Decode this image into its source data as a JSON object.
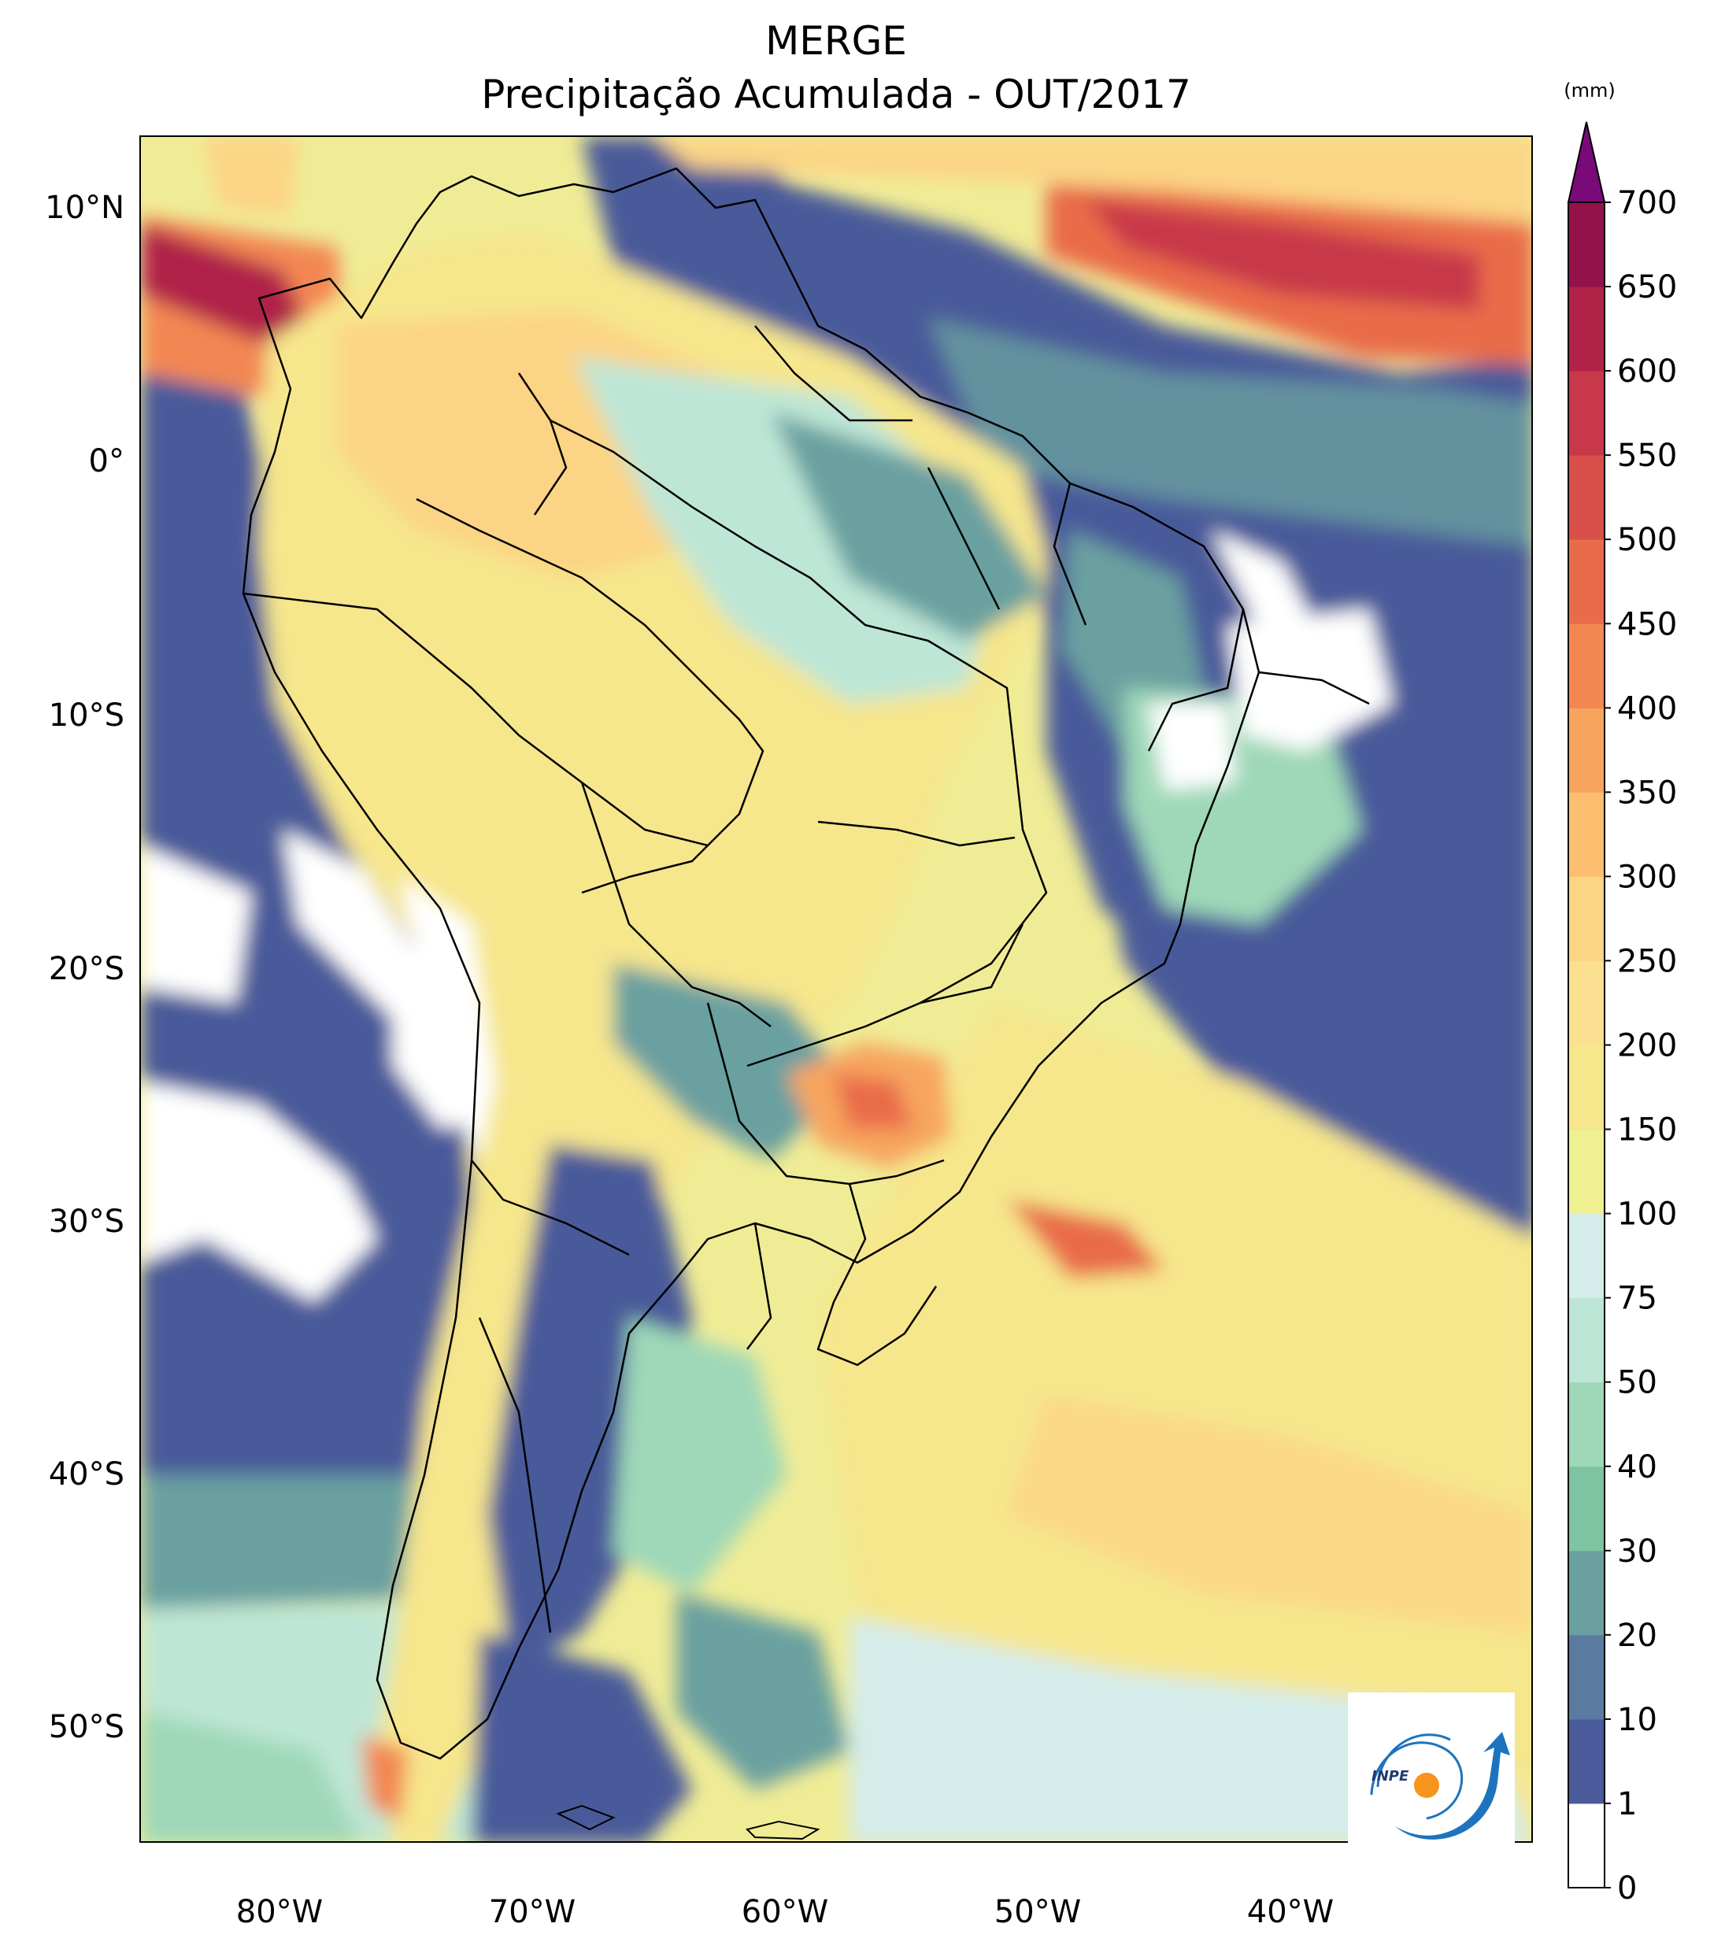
{
  "title": {
    "line1": "MERGE",
    "line2": "Precipitação Acumulada - OUT/2017"
  },
  "axes": {
    "lat_ticks": [
      "10°N",
      "0°",
      "10°S",
      "20°S",
      "30°S",
      "40°S",
      "50°S"
    ],
    "lon_ticks": [
      "80°W",
      "70°W",
      "60°W",
      "50°W",
      "40°W"
    ]
  },
  "colorbar": {
    "unit": "(mm)",
    "levels": [
      "0",
      "1",
      "10",
      "20",
      "30",
      "40",
      "50",
      "75",
      "100",
      "150",
      "200",
      "250",
      "300",
      "350",
      "400",
      "450",
      "500",
      "550",
      "600",
      "650",
      "700"
    ],
    "colors": [
      "#ffffff",
      "#4a5a9a",
      "#5a7aa0",
      "#6aa0a0",
      "#7ec4a2",
      "#9ed8b8",
      "#bee6d6",
      "#d4ecea",
      "#eef092",
      "#f6e68c",
      "#fce091",
      "#fcd485",
      "#fbbf6f",
      "#f7a55e",
      "#f38752",
      "#e96c4a",
      "#d9504a",
      "#c8384a",
      "#b02248",
      "#93124a"
    ],
    "extend_color": "#7a0a7a"
  },
  "logo": {
    "text": "INPE",
    "colors": {
      "blue": "#1e73be",
      "orange": "#f7941d"
    }
  }
}
